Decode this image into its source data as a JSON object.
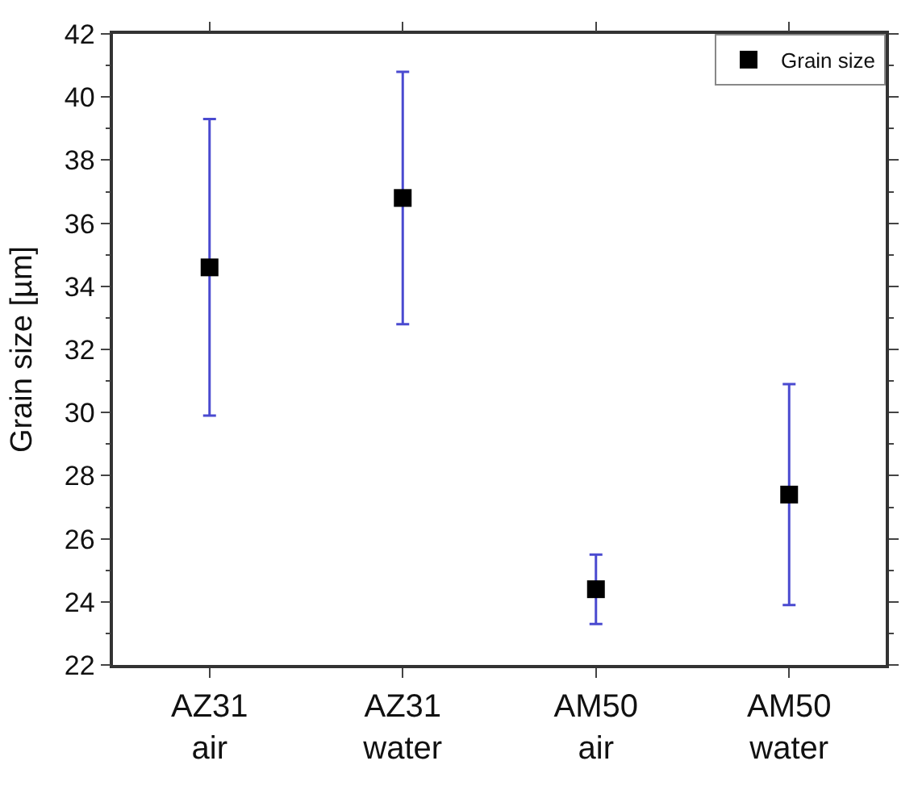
{
  "chart_data": {
    "type": "scatter",
    "ylabel": "Grain size [µm]",
    "categories": [
      "AZ31 air",
      "AZ31 water",
      "AM50 air",
      "AM50 water"
    ],
    "series": [
      {
        "name": "Grain size",
        "color": "#000000",
        "values": [
          34.6,
          36.8,
          24.4,
          27.4
        ],
        "errors": [
          [
            29.9,
            39.3
          ],
          [
            32.8,
            40.8
          ],
          [
            23.3,
            25.5
          ],
          [
            23.9,
            30.9
          ]
        ]
      }
    ],
    "ylim": [
      22,
      42
    ],
    "yticks": [
      22,
      24,
      26,
      28,
      30,
      32,
      34,
      36,
      38,
      40,
      42
    ],
    "marker": "square",
    "legend": "top right"
  }
}
